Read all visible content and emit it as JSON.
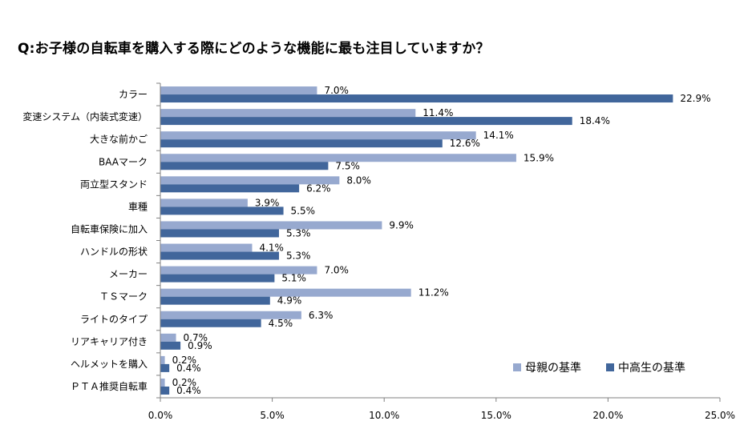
{
  "title": "Q:お子様の自転車を購入する際にどのような機能に最も注目していますか？",
  "colors": {
    "mother": "#97A9CF",
    "student": "#41669B",
    "axis": "#808080"
  },
  "chart_data": {
    "type": "bar",
    "orientation": "horizontal",
    "categories": [
      "カラー",
      "変速システム（内装式変速）",
      "大きな前かご",
      "BAAマーク",
      "両立型スタンド",
      "車種",
      "自転車保険に加入",
      "ハンドルの形状",
      "メーカー",
      "ＴＳマーク",
      "ライトのタイプ",
      "リアキャリア付き",
      "ヘルメットを購入",
      "ＰＴＡ推奨自転車"
    ],
    "series": [
      {
        "name": "母親の基準",
        "values": [
          7.0,
          11.4,
          14.1,
          15.9,
          8.0,
          3.9,
          9.9,
          4.1,
          7.0,
          11.2,
          6.3,
          0.7,
          0.2,
          0.2
        ],
        "labels": [
          "7.0%",
          "11.4%",
          "14.1%",
          "15.9%",
          "8.0%",
          "3.9%",
          "9.9%",
          "4.1%",
          "7.0%",
          "11.2%",
          "6.3%",
          "0.7%",
          "0.2%",
          "0.2%"
        ]
      },
      {
        "name": "中高生の基準",
        "values": [
          22.9,
          18.4,
          12.6,
          7.5,
          6.2,
          5.5,
          5.3,
          5.3,
          5.1,
          4.9,
          4.5,
          0.9,
          0.4,
          0.4
        ],
        "labels": [
          "22.9%",
          "18.4%",
          "12.6%",
          "7.5%",
          "6.2%",
          "5.5%",
          "5.3%",
          "5.3%",
          "5.1%",
          "4.9%",
          "4.5%",
          "0.9%",
          "0.4%",
          "0.4%"
        ]
      }
    ],
    "xlim": [
      0,
      25
    ],
    "xticks": [
      "0.0%",
      "5.0%",
      "10.0%",
      "15.0%",
      "20.0%",
      "25.0%"
    ],
    "xtick_values": [
      0,
      5,
      10,
      15,
      20,
      25
    ],
    "legend_position": "bottom-right",
    "grid": false
  }
}
